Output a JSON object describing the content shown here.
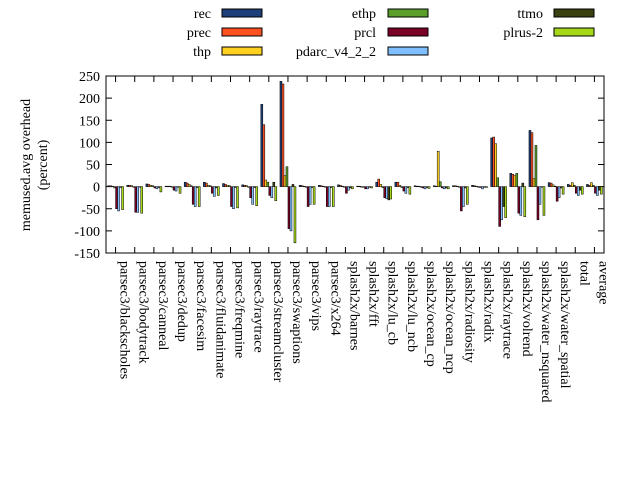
{
  "chart_data": {
    "type": "bar",
    "ylabel": "memused.avg overhead\n(percent)",
    "ylim": [
      -150,
      250
    ],
    "yticks": [
      -150,
      -100,
      -50,
      0,
      50,
      100,
      150,
      200,
      250
    ],
    "legend_position": "top",
    "categories": [
      "parsec3/blackscholes",
      "parsec3/bodytrack",
      "parsec3/canneal",
      "parsec3/dedup",
      "parsec3/facesim",
      "parsec3/fluidanimate",
      "parsec3/freqmine",
      "parsec3/raytrace",
      "parsec3/streamcluster",
      "parsec3/swaptions",
      "parsec3/vips",
      "parsec3/x264",
      "splash2x/barnes",
      "splash2x/fft",
      "splash2x/lu_cb",
      "splash2x/lu_ncb",
      "splash2x/ocean_cp",
      "splash2x/ocean_ncp",
      "splash2x/radiosity",
      "splash2x/radix",
      "splash2x/raytrace",
      "splash2x/volrend",
      "splash2x/water_nsquared",
      "splash2x/water_spatial",
      "total",
      "average"
    ],
    "series": [
      {
        "name": "rec",
        "color": "#1f3f7a",
        "values": [
          2,
          3,
          6,
          1,
          10,
          10,
          7,
          4,
          186,
          238,
          3,
          3,
          4,
          1,
          10,
          10,
          2,
          2,
          2,
          3,
          110,
          30,
          127,
          9,
          5,
          5
        ]
      },
      {
        "name": "prec",
        "color": "#ff5020",
        "values": [
          2,
          3,
          5,
          1,
          8,
          8,
          5,
          3,
          140,
          232,
          2,
          2,
          3,
          1,
          17,
          10,
          1,
          1,
          2,
          2,
          112,
          28,
          122,
          8,
          3,
          3
        ]
      },
      {
        "name": "thp",
        "color": "#ffd020",
        "values": [
          1,
          2,
          3,
          1,
          5,
          3,
          3,
          2,
          15,
          25,
          1,
          1,
          1,
          0,
          5,
          3,
          1,
          80,
          1,
          1,
          97,
          25,
          18,
          4,
          9,
          9
        ]
      },
      {
        "name": "ethp",
        "color": "#5a9f2a",
        "values": [
          -3,
          -1,
          2,
          0,
          2,
          2,
          2,
          0,
          10,
          45,
          -1,
          0,
          -1,
          0,
          -2,
          -2,
          -1,
          11,
          -1,
          0,
          20,
          30,
          93,
          1,
          3,
          3
        ]
      },
      {
        "name": "prcl",
        "color": "#7a0025",
        "values": [
          -50,
          -58,
          -3,
          -8,
          -40,
          -15,
          -45,
          -25,
          -20,
          -95,
          -45,
          -45,
          -15,
          -5,
          -25,
          -10,
          -3,
          -3,
          -55,
          -2,
          -90,
          -60,
          -75,
          -33,
          -15,
          -15
        ]
      },
      {
        "name": "pdarc_v4_2_2",
        "color": "#80bfff",
        "values": [
          -55,
          -58,
          -5,
          -10,
          -45,
          -22,
          -50,
          -40,
          -25,
          -100,
          -40,
          -45,
          -8,
          -5,
          -27,
          -15,
          -5,
          -5,
          -45,
          -5,
          -75,
          -65,
          -40,
          -25,
          -20,
          -20
        ]
      },
      {
        "name": "ttmo",
        "color": "#3a4010",
        "values": [
          -2,
          -1,
          -2,
          -1,
          -2,
          -3,
          -2,
          -2,
          10,
          5,
          -2,
          -2,
          -3,
          -1,
          -30,
          -2,
          -2,
          -3,
          -3,
          -1,
          -45,
          8,
          0,
          -3,
          -8,
          -8
        ]
      },
      {
        "name": "plrus-2",
        "color": "#a6d818",
        "values": [
          -52,
          -60,
          -12,
          -15,
          -45,
          -20,
          -48,
          -43,
          -32,
          -127,
          -40,
          -45,
          -5,
          -3,
          -28,
          -17,
          -4,
          -5,
          -40,
          -2,
          -70,
          -68,
          -65,
          -17,
          -17,
          -17
        ]
      }
    ]
  }
}
